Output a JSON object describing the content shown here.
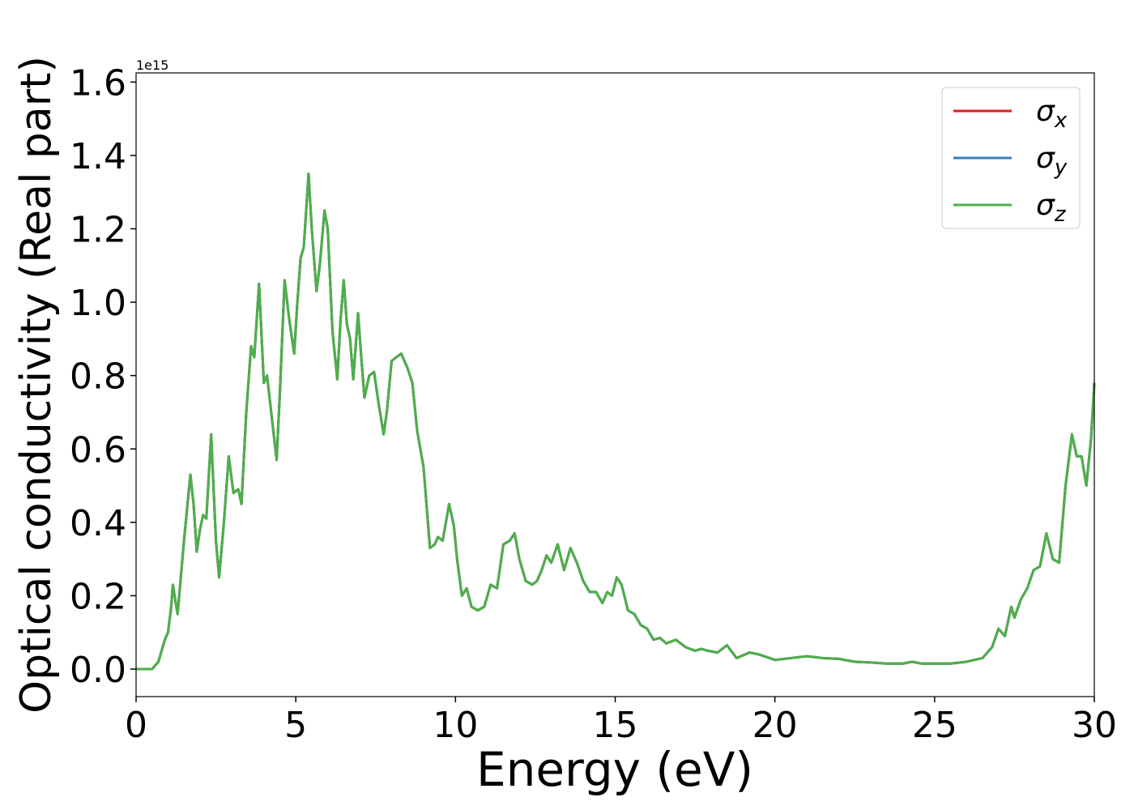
{
  "chart_data": {
    "type": "line",
    "xlabel": "Energy (eV)",
    "ylabel": "Optical conductivity (Real part)",
    "offset_label": "1e15",
    "xlim": [
      0,
      30
    ],
    "ylim": [
      -0.075,
      1.625
    ],
    "xticks": [
      0,
      5,
      10,
      15,
      20,
      25,
      30
    ],
    "yticks": [
      {
        "value": 0,
        "label": "0.0"
      },
      0.2,
      0.4,
      0.6,
      0.8,
      {
        "value": 1,
        "label": "1.0"
      },
      1.2,
      1.4,
      1.6
    ],
    "legend": "upper right",
    "x": [
      0,
      0.5,
      0.7,
      0.9,
      1.0,
      1.1,
      1.15,
      1.3,
      1.5,
      1.7,
      1.8,
      1.9,
      2.0,
      2.1,
      2.2,
      2.35,
      2.5,
      2.6,
      2.75,
      2.9,
      3.05,
      3.2,
      3.3,
      3.45,
      3.6,
      3.7,
      3.85,
      4.0,
      4.1,
      4.4,
      4.5,
      4.65,
      4.8,
      4.95,
      5.05,
      5.15,
      5.25,
      5.4,
      5.5,
      5.65,
      5.75,
      5.9,
      6.0,
      6.15,
      6.3,
      6.4,
      6.5,
      6.6,
      6.7,
      6.8,
      6.95,
      7.05,
      7.15,
      7.3,
      7.45,
      7.6,
      7.75,
      7.85,
      8.0,
      8.15,
      8.3,
      8.5,
      8.65,
      8.8,
      9.0,
      9.2,
      9.35,
      9.45,
      9.6,
      9.8,
      9.95,
      10.05,
      10.2,
      10.35,
      10.5,
      10.7,
      10.9,
      11.1,
      11.3,
      11.5,
      11.7,
      11.85,
      12.0,
      12.2,
      12.4,
      12.55,
      12.7,
      12.85,
      13.0,
      13.2,
      13.4,
      13.6,
      13.8,
      14.0,
      14.2,
      14.4,
      14.6,
      14.75,
      14.9,
      15.05,
      15.2,
      15.4,
      15.6,
      15.8,
      16.0,
      16.2,
      16.4,
      16.6,
      16.9,
      17.2,
      17.5,
      17.7,
      17.9,
      18.2,
      18.5,
      18.8,
      19.2,
      19.5,
      20.0,
      20.5,
      21.0,
      21.5,
      22.0,
      22.5,
      23.0,
      23.5,
      24.0,
      24.3,
      24.6,
      25.0,
      25.5,
      26.0,
      26.5,
      26.8,
      27.0,
      27.2,
      27.4,
      27.5,
      27.7,
      27.9,
      28.1,
      28.3,
      28.5,
      28.7,
      28.9,
      29.1,
      29.3,
      29.45,
      29.6,
      29.75,
      29.9,
      30.0
    ],
    "series": [
      {
        "name": "σx",
        "color": "#e41a1c",
        "values": [
          0,
          0,
          0.02,
          0.08,
          0.1,
          0.17,
          0.23,
          0.15,
          0.35,
          0.53,
          0.45,
          0.32,
          0.38,
          0.42,
          0.41,
          0.64,
          0.35,
          0.25,
          0.4,
          0.58,
          0.48,
          0.49,
          0.45,
          0.7,
          0.88,
          0.85,
          1.05,
          0.78,
          0.8,
          0.57,
          0.75,
          1.06,
          0.95,
          0.86,
          1.0,
          1.12,
          1.15,
          1.35,
          1.2,
          1.03,
          1.1,
          1.25,
          1.2,
          0.92,
          0.79,
          0.95,
          1.06,
          0.94,
          0.9,
          0.79,
          0.97,
          0.85,
          0.74,
          0.8,
          0.81,
          0.72,
          0.64,
          0.7,
          0.84,
          0.85,
          0.86,
          0.82,
          0.78,
          0.65,
          0.55,
          0.33,
          0.34,
          0.36,
          0.35,
          0.45,
          0.39,
          0.3,
          0.2,
          0.22,
          0.17,
          0.16,
          0.17,
          0.23,
          0.22,
          0.34,
          0.35,
          0.37,
          0.3,
          0.24,
          0.23,
          0.24,
          0.27,
          0.31,
          0.29,
          0.34,
          0.27,
          0.33,
          0.29,
          0.24,
          0.21,
          0.21,
          0.18,
          0.21,
          0.2,
          0.25,
          0.23,
          0.16,
          0.15,
          0.12,
          0.11,
          0.08,
          0.085,
          0.07,
          0.08,
          0.06,
          0.05,
          0.055,
          0.05,
          0.045,
          0.065,
          0.03,
          0.045,
          0.04,
          0.025,
          0.03,
          0.035,
          0.03,
          0.028,
          0.02,
          0.018,
          0.015,
          0.015,
          0.02,
          0.015,
          0.015,
          0.015,
          0.02,
          0.03,
          0.06,
          0.11,
          0.09,
          0.17,
          0.14,
          0.19,
          0.22,
          0.27,
          0.28,
          0.37,
          0.3,
          0.29,
          0.5,
          0.64,
          0.58,
          0.58,
          0.5,
          0.63,
          0.78
        ]
      },
      {
        "name": "σy",
        "color": "#377eb8",
        "values": [
          0,
          0,
          0.02,
          0.08,
          0.1,
          0.17,
          0.23,
          0.15,
          0.35,
          0.53,
          0.45,
          0.32,
          0.38,
          0.42,
          0.41,
          0.64,
          0.35,
          0.25,
          0.4,
          0.58,
          0.48,
          0.49,
          0.45,
          0.7,
          0.88,
          0.85,
          1.05,
          0.78,
          0.8,
          0.57,
          0.75,
          1.06,
          0.95,
          0.86,
          1.0,
          1.12,
          1.15,
          1.35,
          1.2,
          1.03,
          1.1,
          1.25,
          1.2,
          0.92,
          0.79,
          0.95,
          1.06,
          0.94,
          0.9,
          0.79,
          0.97,
          0.85,
          0.74,
          0.8,
          0.81,
          0.72,
          0.64,
          0.7,
          0.84,
          0.85,
          0.86,
          0.82,
          0.78,
          0.65,
          0.55,
          0.33,
          0.34,
          0.36,
          0.35,
          0.45,
          0.39,
          0.3,
          0.2,
          0.22,
          0.17,
          0.16,
          0.17,
          0.23,
          0.22,
          0.34,
          0.35,
          0.37,
          0.3,
          0.24,
          0.23,
          0.24,
          0.27,
          0.31,
          0.29,
          0.34,
          0.27,
          0.33,
          0.29,
          0.24,
          0.21,
          0.21,
          0.18,
          0.21,
          0.2,
          0.25,
          0.23,
          0.16,
          0.15,
          0.12,
          0.11,
          0.08,
          0.085,
          0.07,
          0.08,
          0.06,
          0.05,
          0.055,
          0.05,
          0.045,
          0.065,
          0.03,
          0.045,
          0.04,
          0.025,
          0.03,
          0.035,
          0.03,
          0.028,
          0.02,
          0.018,
          0.015,
          0.015,
          0.02,
          0.015,
          0.015,
          0.015,
          0.02,
          0.03,
          0.06,
          0.11,
          0.09,
          0.17,
          0.14,
          0.19,
          0.22,
          0.27,
          0.28,
          0.37,
          0.3,
          0.29,
          0.5,
          0.64,
          0.58,
          0.58,
          0.5,
          0.63,
          0.78
        ]
      },
      {
        "name": "σz",
        "color": "#4daf4a",
        "values": [
          0,
          0,
          0.02,
          0.08,
          0.1,
          0.17,
          0.23,
          0.15,
          0.35,
          0.53,
          0.45,
          0.32,
          0.38,
          0.42,
          0.41,
          0.64,
          0.35,
          0.25,
          0.4,
          0.58,
          0.48,
          0.49,
          0.45,
          0.7,
          0.88,
          0.85,
          1.05,
          0.78,
          0.8,
          0.57,
          0.75,
          1.06,
          0.95,
          0.86,
          1.0,
          1.12,
          1.15,
          1.35,
          1.2,
          1.03,
          1.1,
          1.25,
          1.2,
          0.92,
          0.79,
          0.95,
          1.06,
          0.94,
          0.9,
          0.79,
          0.97,
          0.85,
          0.74,
          0.8,
          0.81,
          0.72,
          0.64,
          0.7,
          0.84,
          0.85,
          0.86,
          0.82,
          0.78,
          0.65,
          0.55,
          0.33,
          0.34,
          0.36,
          0.35,
          0.45,
          0.39,
          0.3,
          0.2,
          0.22,
          0.17,
          0.16,
          0.17,
          0.23,
          0.22,
          0.34,
          0.35,
          0.37,
          0.3,
          0.24,
          0.23,
          0.24,
          0.27,
          0.31,
          0.29,
          0.34,
          0.27,
          0.33,
          0.29,
          0.24,
          0.21,
          0.21,
          0.18,
          0.21,
          0.2,
          0.25,
          0.23,
          0.16,
          0.15,
          0.12,
          0.11,
          0.08,
          0.085,
          0.07,
          0.08,
          0.06,
          0.05,
          0.055,
          0.05,
          0.045,
          0.065,
          0.03,
          0.045,
          0.04,
          0.025,
          0.03,
          0.035,
          0.03,
          0.028,
          0.02,
          0.018,
          0.015,
          0.015,
          0.02,
          0.015,
          0.015,
          0.015,
          0.02,
          0.03,
          0.06,
          0.11,
          0.09,
          0.17,
          0.14,
          0.19,
          0.22,
          0.27,
          0.28,
          0.37,
          0.3,
          0.29,
          0.5,
          0.64,
          0.58,
          0.58,
          0.5,
          0.63,
          0.78
        ]
      }
    ]
  }
}
